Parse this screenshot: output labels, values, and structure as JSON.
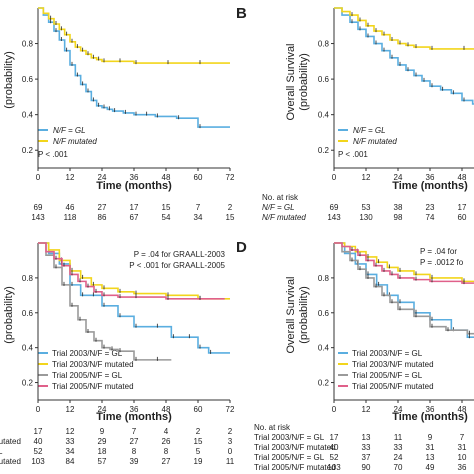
{
  "colors": {
    "gl": "#5aaee0",
    "mutated": "#f2d51c",
    "t2003gl": "#5aaee0",
    "t2003mut": "#f2d51c",
    "t2005gl": "#9a9a9a",
    "t2005mut": "#e0608a",
    "axis": "#333333"
  },
  "panels": {
    "B": {
      "letter": "B",
      "ylabel1": "Overall Survival",
      "ylabel2": "(probability)"
    },
    "D": {
      "letter": "D",
      "ylabel1": "Overall Survival",
      "ylabel2": "(probability)"
    }
  },
  "xlabel": "Time (months)",
  "legend_A": {
    "gl": "N/F = GL",
    "mut": "N/F mutated",
    "p": "P < .001"
  },
  "legend_B": {
    "gl": "N/F = GL",
    "mut": "N/F mutated",
    "p": "P < .001"
  },
  "legend_C": {
    "t2003gl": "Trial 2003/N/F = GL",
    "t2003mut": "Trial 2003/N/F mutated",
    "t2005gl": "Trial 2005/N/F = GL",
    "t2005mut": "Trial 2005/N/F mutated",
    "p1": "P = .04 for GRAALL-2003",
    "p2": "P < .001 for GRAALL-2005"
  },
  "legend_D": {
    "t2003gl": "Trial 2003/N/F = GL",
    "t2003mut": "Trial 2003/N/F mutated",
    "t2005gl": "Trial 2005/N/F = GL",
    "t2005mut": "Trial 2005/N/F mutated",
    "p1": "P = .04 for",
    "p2": "P = .0012 fo"
  },
  "risk_A": {
    "rows": [
      [
        "69",
        "46",
        "27",
        "17",
        "15",
        "7",
        "2"
      ],
      [
        "143",
        "118",
        "86",
        "67",
        "54",
        "34",
        "15"
      ]
    ]
  },
  "risk_B": {
    "title": "No. at risk",
    "labels": [
      "N/F = GL",
      "N/F mutated"
    ],
    "rows": [
      [
        "69",
        "53",
        "38",
        "23",
        "17"
      ],
      [
        "143",
        "130",
        "98",
        "74",
        "60"
      ]
    ]
  },
  "risk_C": {
    "labels": [
      "l",
      "mutated",
      "L",
      "mutated"
    ],
    "rows": [
      [
        "17",
        "12",
        "9",
        "7",
        "4",
        "2",
        "2"
      ],
      [
        "40",
        "33",
        "29",
        "27",
        "26",
        "15",
        "3"
      ],
      [
        "52",
        "34",
        "18",
        "8",
        "8",
        "5",
        "0"
      ],
      [
        "103",
        "84",
        "57",
        "39",
        "27",
        "19",
        "11"
      ]
    ]
  },
  "risk_D": {
    "title": "No. at risk",
    "labels": [
      "Trial 2003/N/F = GL",
      "Trial 2003/N/F mutated",
      "Trial 2005/N/F = GL",
      "Trial 2005/N/F mutated"
    ],
    "rows": [
      [
        "17",
        "13",
        "11",
        "9",
        "7"
      ],
      [
        "40",
        "33",
        "33",
        "31",
        "31"
      ],
      [
        "52",
        "37",
        "24",
        "13",
        "10"
      ],
      [
        "103",
        "90",
        "70",
        "49",
        "36"
      ]
    ]
  },
  "chart_data": [
    {
      "panel": "A",
      "type": "line",
      "xlabel": "Time (months)",
      "ylabel": "(probability)",
      "xticks": [
        0,
        12,
        24,
        36,
        48,
        60,
        72
      ],
      "yticks": [
        0.2,
        0.4,
        0.6,
        0.8
      ],
      "xlim": [
        0,
        72
      ],
      "ylim": [
        0.1,
        1.0
      ],
      "series": [
        {
          "name": "N/F = GL",
          "color": "gl",
          "points": [
            [
              0,
              1.0
            ],
            [
              2,
              0.96
            ],
            [
              4,
              0.92
            ],
            [
              6,
              0.87
            ],
            [
              8,
              0.82
            ],
            [
              10,
              0.76
            ],
            [
              12,
              0.68
            ],
            [
              14,
              0.62
            ],
            [
              16,
              0.57
            ],
            [
              18,
              0.53
            ],
            [
              20,
              0.48
            ],
            [
              22,
              0.45
            ],
            [
              24,
              0.44
            ],
            [
              26,
              0.43
            ],
            [
              28,
              0.42
            ],
            [
              32,
              0.41
            ],
            [
              36,
              0.4
            ],
            [
              40,
              0.4
            ],
            [
              44,
              0.39
            ],
            [
              52,
              0.38
            ],
            [
              60,
              0.33
            ],
            [
              72,
              0.33
            ]
          ]
        },
        {
          "name": "N/F mutated",
          "color": "mutated",
          "points": [
            [
              0,
              1.0
            ],
            [
              2,
              0.97
            ],
            [
              4,
              0.94
            ],
            [
              6,
              0.91
            ],
            [
              8,
              0.88
            ],
            [
              10,
              0.85
            ],
            [
              12,
              0.81
            ],
            [
              14,
              0.78
            ],
            [
              16,
              0.76
            ],
            [
              18,
              0.74
            ],
            [
              20,
              0.72
            ],
            [
              22,
              0.71
            ],
            [
              24,
              0.7
            ],
            [
              30,
              0.7
            ],
            [
              36,
              0.69
            ],
            [
              48,
              0.69
            ],
            [
              60,
              0.69
            ],
            [
              72,
              0.69
            ]
          ]
        }
      ]
    },
    {
      "panel": "B",
      "type": "line",
      "xlabel": "Time (months)",
      "ylabel": "Overall Survival (probability)",
      "xticks": [
        0,
        12,
        24,
        36,
        48
      ],
      "yticks": [
        0.2,
        0.4,
        0.6,
        0.8
      ],
      "xlim": [
        0,
        72
      ],
      "ylim": [
        0.1,
        1.0
      ],
      "series": [
        {
          "name": "N/F = GL",
          "color": "gl",
          "points": [
            [
              0,
              1.0
            ],
            [
              3,
              0.96
            ],
            [
              6,
              0.92
            ],
            [
              9,
              0.88
            ],
            [
              12,
              0.84
            ],
            [
              15,
              0.8
            ],
            [
              18,
              0.76
            ],
            [
              21,
              0.72
            ],
            [
              24,
              0.68
            ],
            [
              27,
              0.65
            ],
            [
              30,
              0.62
            ],
            [
              33,
              0.59
            ],
            [
              36,
              0.56
            ],
            [
              40,
              0.54
            ],
            [
              44,
              0.52
            ],
            [
              48,
              0.48
            ],
            [
              52,
              0.46
            ],
            [
              56,
              0.45
            ]
          ]
        },
        {
          "name": "N/F mutated",
          "color": "mutated",
          "points": [
            [
              0,
              1.0
            ],
            [
              3,
              0.98
            ],
            [
              6,
              0.96
            ],
            [
              9,
              0.93
            ],
            [
              12,
              0.9
            ],
            [
              15,
              0.87
            ],
            [
              18,
              0.85
            ],
            [
              21,
              0.82
            ],
            [
              24,
              0.8
            ],
            [
              27,
              0.79
            ],
            [
              30,
              0.78
            ],
            [
              36,
              0.77
            ],
            [
              48,
              0.77
            ],
            [
              56,
              0.77
            ]
          ]
        }
      ]
    },
    {
      "panel": "C",
      "type": "line",
      "xlabel": "Time (months)",
      "ylabel": "(probability)",
      "xticks": [
        0,
        12,
        24,
        36,
        48,
        60,
        72
      ],
      "yticks": [
        0.2,
        0.4,
        0.6,
        0.8
      ],
      "xlim": [
        0,
        72
      ],
      "ylim": [
        0.1,
        1.0
      ],
      "series": [
        {
          "name": "Trial 2003/N/F = GL",
          "color": "t2003gl",
          "points": [
            [
              0,
              1.0
            ],
            [
              4,
              0.94
            ],
            [
              8,
              0.88
            ],
            [
              12,
              0.76
            ],
            [
              16,
              0.7
            ],
            [
              20,
              0.7
            ],
            [
              24,
              0.64
            ],
            [
              30,
              0.58
            ],
            [
              36,
              0.52
            ],
            [
              44,
              0.52
            ],
            [
              50,
              0.46
            ],
            [
              56,
              0.46
            ],
            [
              60,
              0.4
            ],
            [
              64,
              0.37
            ],
            [
              72,
              0.37
            ]
          ]
        },
        {
          "name": "Trial 2003/N/F mutated",
          "color": "t2003mut",
          "points": [
            [
              0,
              1.0
            ],
            [
              4,
              0.96
            ],
            [
              8,
              0.9
            ],
            [
              12,
              0.84
            ],
            [
              16,
              0.8
            ],
            [
              20,
              0.76
            ],
            [
              24,
              0.74
            ],
            [
              30,
              0.72
            ],
            [
              36,
              0.71
            ],
            [
              48,
              0.7
            ],
            [
              60,
              0.68
            ],
            [
              72,
              0.68
            ]
          ]
        },
        {
          "name": "Trial 2005/N/F = GL",
          "color": "t2005gl",
          "points": [
            [
              0,
              1.0
            ],
            [
              3,
              0.93
            ],
            [
              6,
              0.86
            ],
            [
              9,
              0.76
            ],
            [
              12,
              0.64
            ],
            [
              15,
              0.56
            ],
            [
              18,
              0.49
            ],
            [
              21,
              0.44
            ],
            [
              24,
              0.4
            ],
            [
              27,
              0.39
            ],
            [
              30,
              0.38
            ],
            [
              36,
              0.33
            ],
            [
              44,
              0.33
            ],
            [
              50,
              0.33
            ]
          ]
        },
        {
          "name": "Trial 2005/N/F mutated",
          "color": "t2005mut",
          "points": [
            [
              0,
              1.0
            ],
            [
              3,
              0.95
            ],
            [
              6,
              0.91
            ],
            [
              9,
              0.87
            ],
            [
              12,
              0.82
            ],
            [
              15,
              0.78
            ],
            [
              18,
              0.75
            ],
            [
              21,
              0.72
            ],
            [
              24,
              0.7
            ],
            [
              30,
              0.69
            ],
            [
              36,
              0.69
            ],
            [
              48,
              0.68
            ],
            [
              60,
              0.68
            ],
            [
              70,
              0.68
            ]
          ]
        }
      ]
    },
    {
      "panel": "D",
      "type": "line",
      "xlabel": "Time (months)",
      "ylabel": "Overall Survival (probability)",
      "xticks": [
        0,
        12,
        24,
        36,
        48
      ],
      "yticks": [
        0.2,
        0.4,
        0.6,
        0.8
      ],
      "xlim": [
        0,
        72
      ],
      "ylim": [
        0.1,
        1.0
      ],
      "series": [
        {
          "name": "Trial 2003/N/F = GL",
          "color": "t2003gl",
          "points": [
            [
              0,
              1.0
            ],
            [
              4,
              0.94
            ],
            [
              8,
              0.88
            ],
            [
              12,
              0.82
            ],
            [
              16,
              0.76
            ],
            [
              20,
              0.7
            ],
            [
              24,
              0.66
            ],
            [
              30,
              0.6
            ],
            [
              36,
              0.56
            ],
            [
              44,
              0.5
            ],
            [
              50,
              0.46
            ],
            [
              56,
              0.43
            ]
          ]
        },
        {
          "name": "Trial 2003/N/F mutated",
          "color": "t2003mut",
          "points": [
            [
              0,
              1.0
            ],
            [
              4,
              0.98
            ],
            [
              8,
              0.95
            ],
            [
              12,
              0.92
            ],
            [
              16,
              0.89
            ],
            [
              20,
              0.86
            ],
            [
              24,
              0.84
            ],
            [
              30,
              0.82
            ],
            [
              36,
              0.8
            ],
            [
              48,
              0.78
            ],
            [
              56,
              0.78
            ]
          ]
        },
        {
          "name": "Trial 2005/N/F = GL",
          "color": "t2005gl",
          "points": [
            [
              0,
              1.0
            ],
            [
              3,
              0.95
            ],
            [
              6,
              0.9
            ],
            [
              9,
              0.85
            ],
            [
              12,
              0.8
            ],
            [
              15,
              0.75
            ],
            [
              18,
              0.7
            ],
            [
              21,
              0.66
            ],
            [
              24,
              0.62
            ],
            [
              30,
              0.58
            ],
            [
              36,
              0.52
            ],
            [
              42,
              0.5
            ],
            [
              50,
              0.48
            ],
            [
              56,
              0.44
            ]
          ]
        },
        {
          "name": "Trial 2005/N/F mutated",
          "color": "t2005mut",
          "points": [
            [
              0,
              1.0
            ],
            [
              3,
              0.98
            ],
            [
              6,
              0.96
            ],
            [
              9,
              0.93
            ],
            [
              12,
              0.9
            ],
            [
              15,
              0.87
            ],
            [
              18,
              0.84
            ],
            [
              21,
              0.82
            ],
            [
              24,
              0.8
            ],
            [
              30,
              0.79
            ],
            [
              36,
              0.78
            ],
            [
              48,
              0.77
            ],
            [
              56,
              0.77
            ]
          ]
        }
      ]
    }
  ]
}
